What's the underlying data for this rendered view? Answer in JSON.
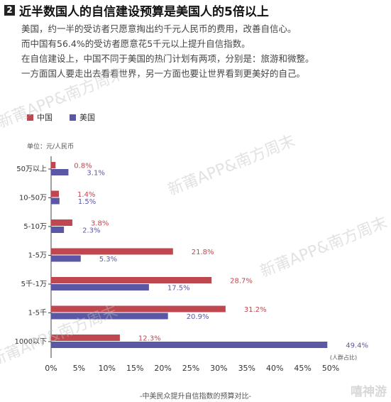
{
  "header": {
    "number": "2",
    "title": "近半数国人的自信建设预算是美国人的5倍以上",
    "lines": [
      "美国，约一半的受访者只愿意掏出约千元人民币的费用，改善自信心。",
      "而中国有56.4%的受访者愿意花5千元以上提升自信指数。",
      "在自信建设上，中国不同于美国的热门计划有两项，分别是：旅游和微整。",
      "一方面国人要走出去看看世界，另一方面也要让世界看到更美好的自己。"
    ]
  },
  "legend": {
    "china": "中国",
    "usa": "美国"
  },
  "colors": {
    "china": "#c0474f",
    "usa": "#5a57a5"
  },
  "unit_note": "单位：元/人民币",
  "caption": "-中美民众提升自信指数的预算对比-",
  "watermarks": [
    "新莆APP&南方周末",
    "新莆APP&南方周末",
    "新莆APP&南方周末",
    "新莆APP&南方周末"
  ],
  "site_mark": "嘻神游",
  "chart_data": {
    "type": "bar",
    "orientation": "horizontal",
    "categories": [
      "50万以上",
      "10-50万",
      "5-10万",
      "1-5万",
      "5千-1万",
      "1-5千",
      "1000以下"
    ],
    "series": [
      {
        "name": "中国",
        "values": [
          0.8,
          1.4,
          3.8,
          21.8,
          28.7,
          31.2,
          12.3
        ]
      },
      {
        "name": "美国",
        "values": [
          3.1,
          1.5,
          2.3,
          5.3,
          17.5,
          20.9,
          49.4
        ]
      }
    ],
    "value_labels": {
      "中国": [
        "0.8%",
        "1.4%",
        "3.8%",
        "21.8%",
        "28.7%",
        "31.2%",
        "12.3%"
      ],
      "美国": [
        "3.1%",
        "1.5%",
        "2.3%",
        "5.3%",
        "17.5%",
        "20.9%",
        "49.4%"
      ]
    },
    "x_ticks": [
      "0%",
      "5%",
      "10%",
      "15%",
      "20%",
      "25%",
      "30%",
      "35%",
      "40%",
      "45%",
      "50%"
    ],
    "xlim": [
      0,
      50
    ],
    "xlabel": "(人群占比)",
    "grid": false,
    "legend_position": "top-left"
  }
}
